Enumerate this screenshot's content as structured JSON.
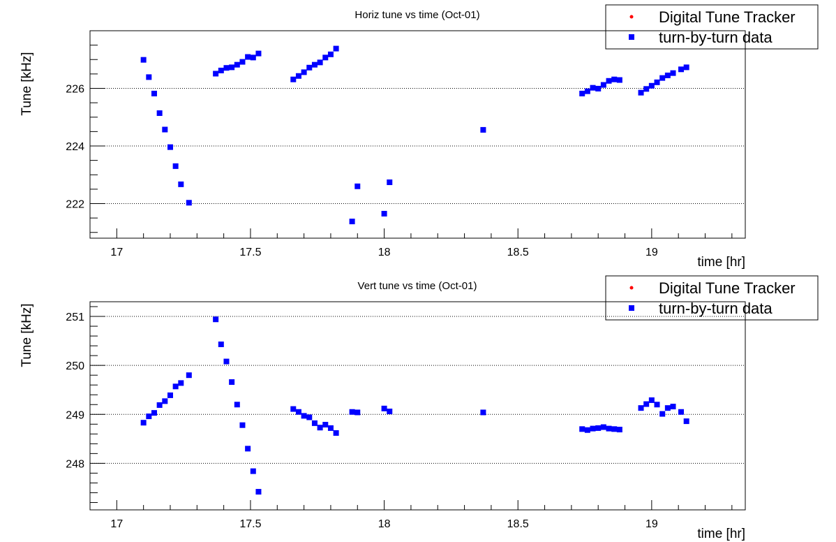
{
  "chart_data": [
    {
      "type": "scatter",
      "title": "Horiz tune vs time (Oct-01)",
      "xlabel": "time [hr]",
      "ylabel": "Tune [kHz]",
      "xlim": [
        16.9,
        19.35
      ],
      "ylim": [
        220.8,
        228.0
      ],
      "xticks": [
        17,
        17.5,
        18,
        18.5,
        19
      ],
      "xtick_labels": [
        "17",
        "17.5",
        "18",
        "18.5",
        "19"
      ],
      "yticks": [
        222,
        224,
        226
      ],
      "ytick_labels": [
        "222",
        "224",
        "226"
      ],
      "grid": "horizontal dotted",
      "legend_position": "top-right",
      "series": [
        {
          "name": "Digital Tune Tracker",
          "color": "#ff0000",
          "marker": "star",
          "points": []
        },
        {
          "name": "turn-by-turn data",
          "color": "#0000ff",
          "marker": "square",
          "points": [
            [
              17.1,
              226.99
            ],
            [
              17.12,
              226.39
            ],
            [
              17.14,
              225.82
            ],
            [
              17.16,
              225.14
            ],
            [
              17.18,
              224.57
            ],
            [
              17.2,
              223.96
            ],
            [
              17.22,
              223.3
            ],
            [
              17.24,
              222.67
            ],
            [
              17.27,
              222.03
            ],
            [
              17.37,
              226.51
            ],
            [
              17.39,
              226.62
            ],
            [
              17.41,
              226.71
            ],
            [
              17.43,
              226.73
            ],
            [
              17.45,
              226.82
            ],
            [
              17.47,
              226.92
            ],
            [
              17.49,
              227.09
            ],
            [
              17.51,
              227.07
            ],
            [
              17.53,
              227.21
            ],
            [
              17.66,
              226.31
            ],
            [
              17.68,
              226.43
            ],
            [
              17.7,
              226.56
            ],
            [
              17.72,
              226.72
            ],
            [
              17.74,
              226.82
            ],
            [
              17.76,
              226.9
            ],
            [
              17.78,
              227.07
            ],
            [
              17.8,
              227.18
            ],
            [
              17.82,
              227.38
            ],
            [
              17.88,
              221.38
            ],
            [
              17.9,
              222.6
            ],
            [
              18.0,
              221.65
            ],
            [
              18.02,
              222.74
            ],
            [
              18.37,
              224.56
            ],
            [
              18.74,
              225.82
            ],
            [
              18.76,
              225.9
            ],
            [
              18.78,
              226.02
            ],
            [
              18.8,
              225.99
            ],
            [
              18.82,
              226.12
            ],
            [
              18.84,
              226.26
            ],
            [
              18.86,
              226.31
            ],
            [
              18.88,
              226.29
            ],
            [
              18.96,
              225.85
            ],
            [
              18.98,
              225.98
            ],
            [
              19.0,
              226.09
            ],
            [
              19.02,
              226.21
            ],
            [
              19.04,
              226.36
            ],
            [
              19.06,
              226.45
            ],
            [
              19.08,
              226.53
            ],
            [
              19.11,
              226.66
            ],
            [
              19.13,
              226.73
            ]
          ]
        }
      ]
    },
    {
      "type": "scatter",
      "title": "Vert tune vs time (Oct-01)",
      "xlabel": "time [hr]",
      "ylabel": "Tune [kHz]",
      "xlim": [
        16.9,
        19.35
      ],
      "ylim": [
        247.05,
        251.3
      ],
      "xticks": [
        17,
        17.5,
        18,
        18.5,
        19
      ],
      "xtick_labels": [
        "17",
        "17.5",
        "18",
        "18.5",
        "19"
      ],
      "yticks": [
        248,
        249,
        250,
        251
      ],
      "ytick_labels": [
        "248",
        "249",
        "250",
        "251"
      ],
      "grid": "horizontal dotted",
      "legend_position": "top-right",
      "series": [
        {
          "name": "Digital Tune Tracker",
          "color": "#ff0000",
          "marker": "star",
          "points": []
        },
        {
          "name": "turn-by-turn data",
          "color": "#0000ff",
          "marker": "square",
          "points": [
            [
              17.1,
              248.83
            ],
            [
              17.12,
              248.96
            ],
            [
              17.14,
              249.03
            ],
            [
              17.16,
              249.19
            ],
            [
              17.18,
              249.27
            ],
            [
              17.2,
              249.39
            ],
            [
              17.22,
              249.57
            ],
            [
              17.24,
              249.64
            ],
            [
              17.27,
              249.8
            ],
            [
              17.37,
              250.94
            ],
            [
              17.39,
              250.43
            ],
            [
              17.41,
              250.08
            ],
            [
              17.43,
              249.66
            ],
            [
              17.45,
              249.2
            ],
            [
              17.47,
              248.78
            ],
            [
              17.49,
              248.3
            ],
            [
              17.51,
              247.84
            ],
            [
              17.53,
              247.42
            ],
            [
              17.66,
              249.11
            ],
            [
              17.68,
              249.05
            ],
            [
              17.7,
              248.97
            ],
            [
              17.72,
              248.94
            ],
            [
              17.74,
              248.82
            ],
            [
              17.76,
              248.73
            ],
            [
              17.78,
              248.79
            ],
            [
              17.8,
              248.72
            ],
            [
              17.82,
              248.62
            ],
            [
              17.88,
              249.05
            ],
            [
              17.9,
              249.04
            ],
            [
              18.0,
              249.12
            ],
            [
              18.02,
              249.06
            ],
            [
              18.37,
              249.04
            ],
            [
              18.74,
              248.7
            ],
            [
              18.76,
              248.68
            ],
            [
              18.78,
              248.71
            ],
            [
              18.8,
              248.72
            ],
            [
              18.82,
              248.74
            ],
            [
              18.84,
              248.71
            ],
            [
              18.86,
              248.7
            ],
            [
              18.88,
              248.69
            ],
            [
              18.96,
              249.13
            ],
            [
              18.98,
              249.21
            ],
            [
              19.0,
              249.29
            ],
            [
              19.02,
              249.2
            ],
            [
              19.04,
              249.01
            ],
            [
              19.06,
              249.13
            ],
            [
              19.08,
              249.16
            ],
            [
              19.11,
              249.05
            ],
            [
              19.13,
              248.86
            ]
          ]
        }
      ]
    }
  ]
}
